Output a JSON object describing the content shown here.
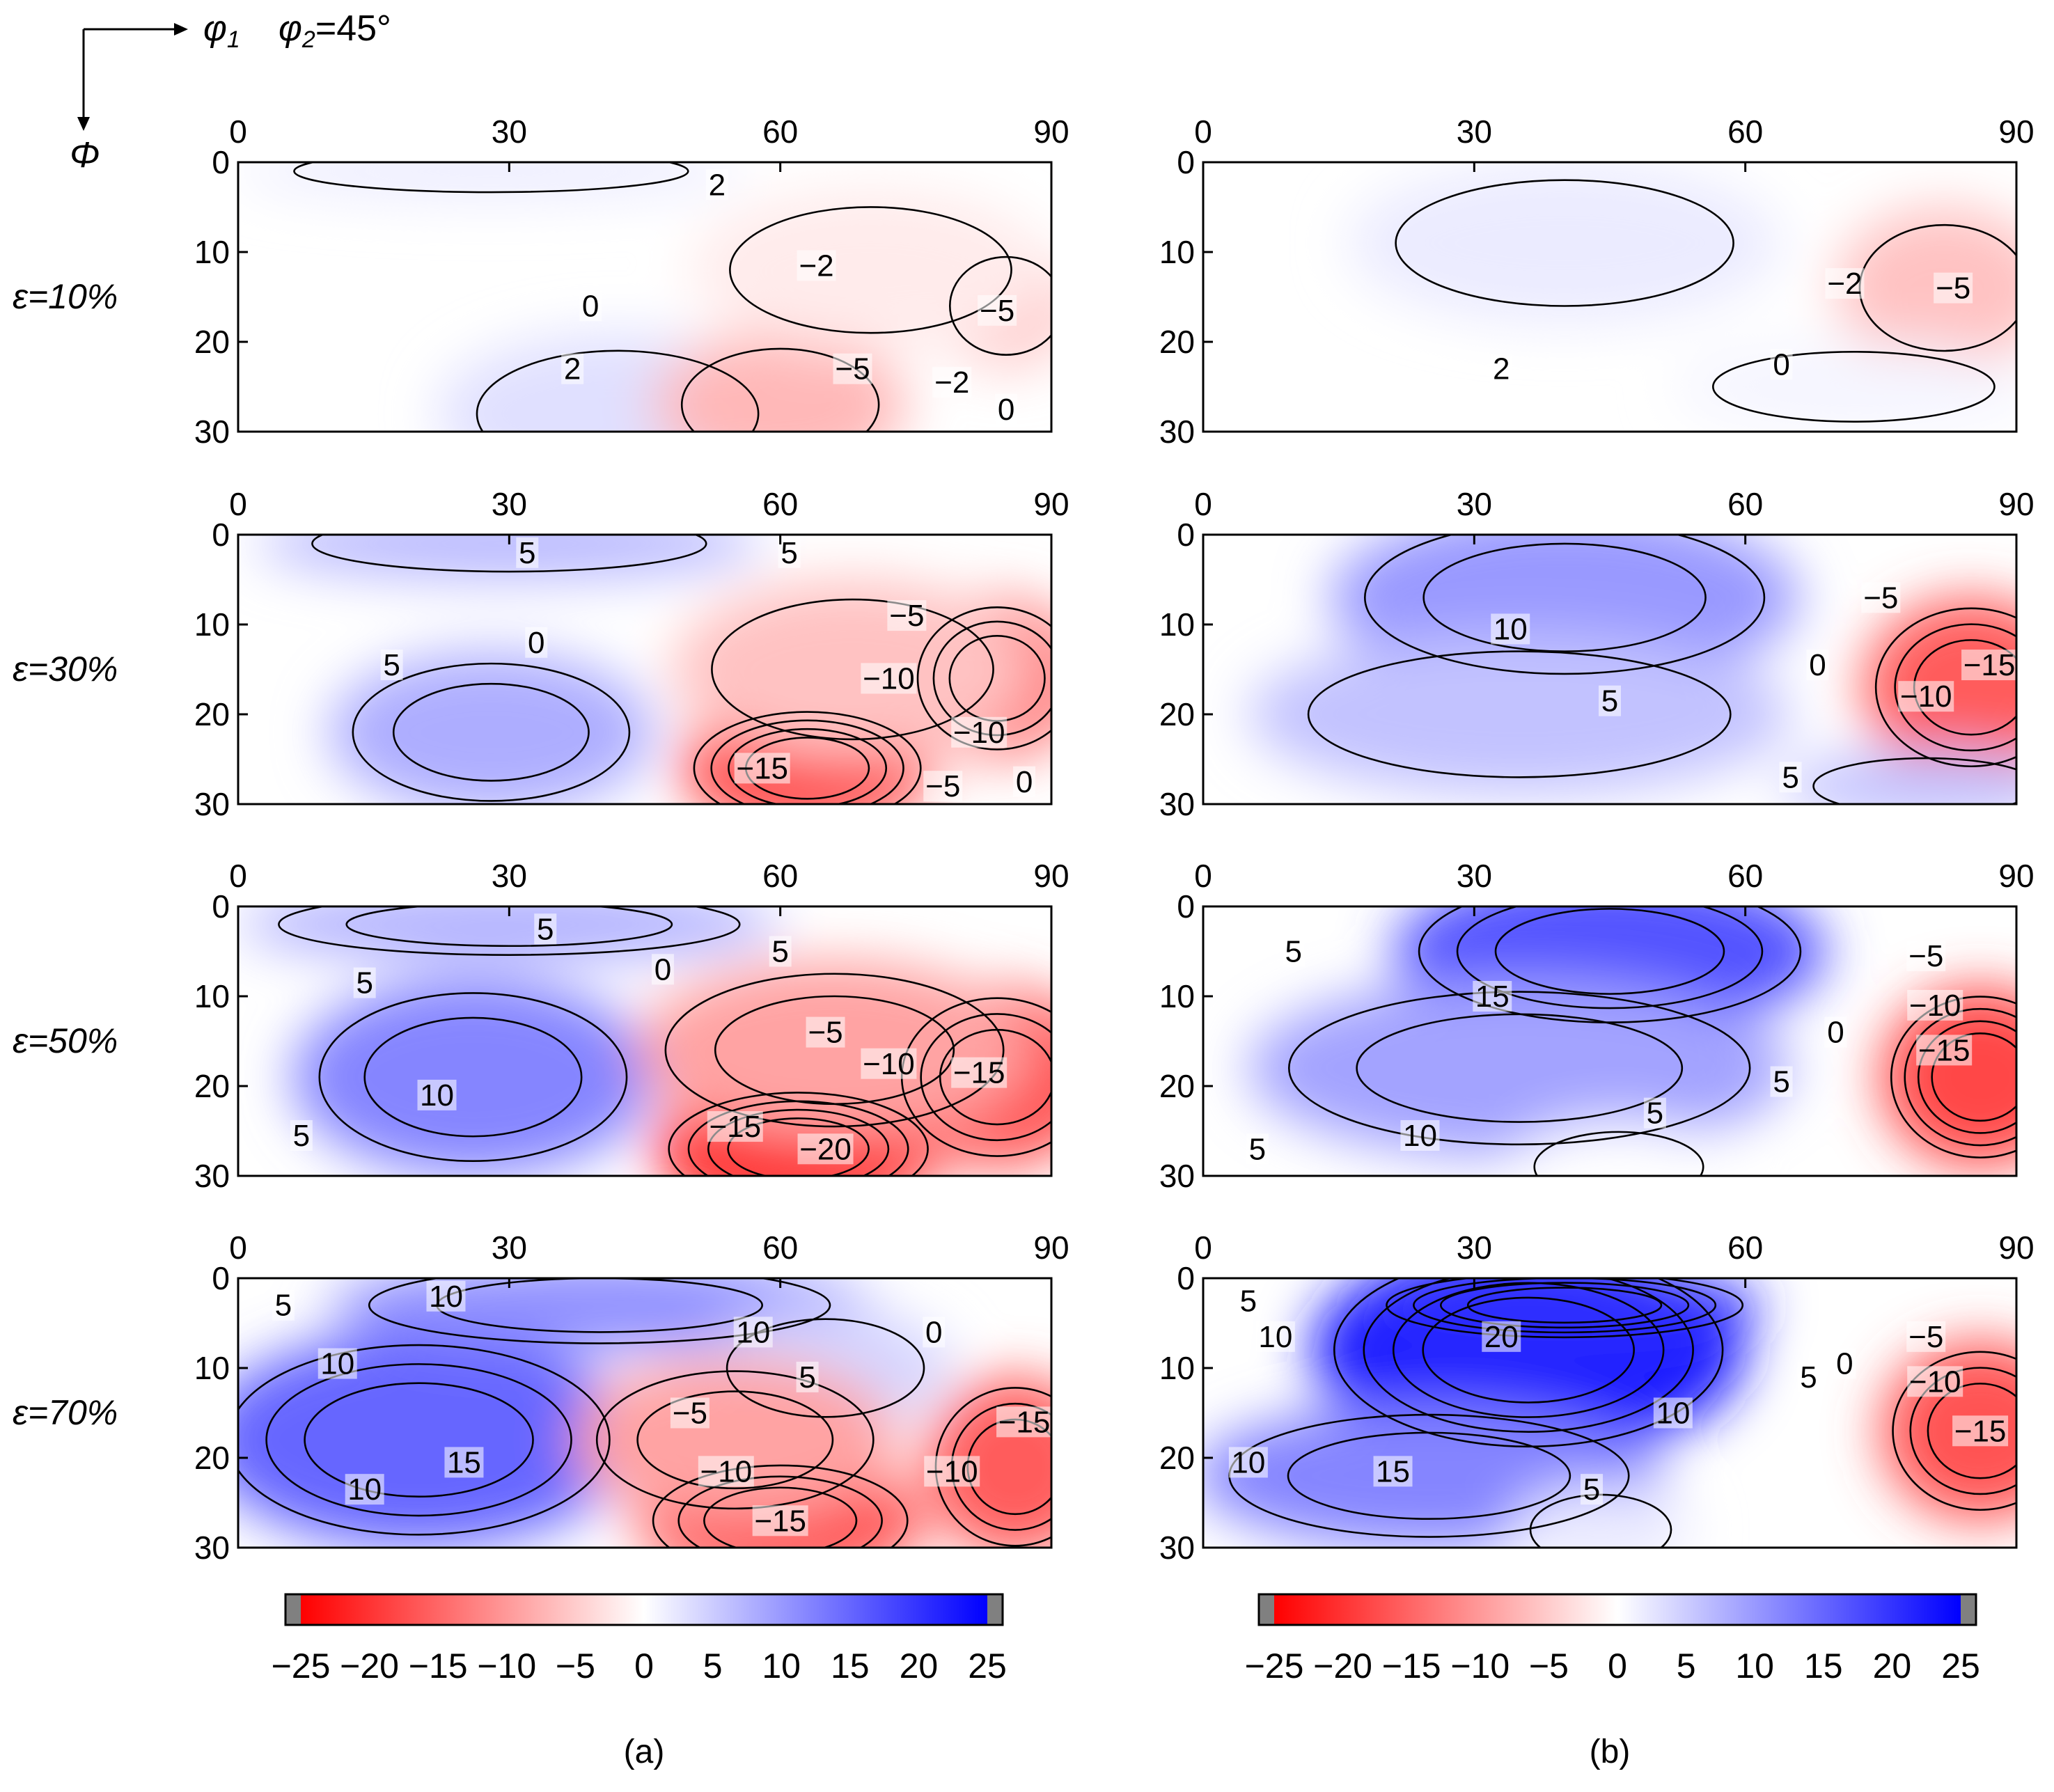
{
  "axes": {
    "phi1_symbol": "φ",
    "phi1_sub": "1",
    "phi2_symbol": "φ",
    "phi2_sub": "2",
    "phi2_value": "=45°",
    "Phi_symbol": "Φ"
  },
  "chart_data": {
    "type": "heatmap",
    "title": "",
    "xlabel": "φ1",
    "ylabel": "Φ",
    "fixed_section": "φ2=45°",
    "x_ticks": [
      "0",
      "30",
      "60",
      "90"
    ],
    "y_ticks": [
      "0",
      "10",
      "20",
      "30"
    ],
    "xlim": [
      0,
      90
    ],
    "ylim": [
      0,
      30
    ],
    "rows": [
      "ε=10%",
      "ε=30%",
      "ε=50%",
      "ε=70%"
    ],
    "columns": [
      "(a)",
      "(b)"
    ],
    "colorbar": {
      "range": [
        -25,
        25
      ],
      "ticks": [
        "−25",
        "−20",
        "−15",
        "−10",
        "−5",
        "0",
        "5",
        "10",
        "15",
        "20",
        "25"
      ],
      "negative_color": "#ff0000",
      "zero_color": "#ffffff",
      "positive_color": "#0000ff",
      "overflow_color": "#808080"
    },
    "panels": [
      {
        "col": "a",
        "row": "ε=10%",
        "blobs": [
          {
            "x": 42,
            "y": 28,
            "rx": 20,
            "ry": 9,
            "v": 3
          },
          {
            "x": 28,
            "y": 1,
            "rx": 28,
            "ry": 3,
            "v": 2
          },
          {
            "x": 60,
            "y": 27,
            "rx": 14,
            "ry": 8,
            "v": -7
          },
          {
            "x": 85,
            "y": 16,
            "rx": 8,
            "ry": 7,
            "v": -5
          },
          {
            "x": 70,
            "y": 12,
            "rx": 20,
            "ry": 9,
            "v": -2
          }
        ],
        "labels": [
          {
            "x": 53,
            "y": 2.5,
            "t": "2"
          },
          {
            "x": 39,
            "y": 16,
            "t": "0"
          },
          {
            "x": 64,
            "y": 11.5,
            "t": "−2"
          },
          {
            "x": 84,
            "y": 16.5,
            "t": "−5"
          },
          {
            "x": 37,
            "y": 23,
            "t": "2"
          },
          {
            "x": 68,
            "y": 23,
            "t": "−5"
          },
          {
            "x": 79,
            "y": 24.5,
            "t": "−2"
          },
          {
            "x": 85,
            "y": 27.5,
            "t": "0"
          }
        ]
      },
      {
        "col": "b",
        "row": "ε=10%",
        "blobs": [
          {
            "x": 40,
            "y": 9,
            "rx": 24,
            "ry": 9,
            "v": 2
          },
          {
            "x": 82,
            "y": 14,
            "rx": 12,
            "ry": 9,
            "v": -6
          },
          {
            "x": 72,
            "y": 25,
            "rx": 20,
            "ry": 5,
            "v": 1
          }
        ],
        "labels": [
          {
            "x": 33,
            "y": 23,
            "t": "2"
          },
          {
            "x": 71,
            "y": 13.5,
            "t": "−2"
          },
          {
            "x": 83,
            "y": 14,
            "t": "−5"
          },
          {
            "x": 64,
            "y": 22.5,
            "t": "0"
          }
        ]
      },
      {
        "col": "a",
        "row": "ε=30%",
        "blobs": [
          {
            "x": 28,
            "y": 22,
            "rx": 18,
            "ry": 9,
            "v": 8
          },
          {
            "x": 30,
            "y": 1,
            "rx": 28,
            "ry": 4,
            "v": 7
          },
          {
            "x": 63,
            "y": 26,
            "rx": 14,
            "ry": 7,
            "v": -18
          },
          {
            "x": 84,
            "y": 16,
            "rx": 10,
            "ry": 9,
            "v": -13
          },
          {
            "x": 68,
            "y": 15,
            "rx": 20,
            "ry": 10,
            "v": -6
          }
        ],
        "labels": [
          {
            "x": 32,
            "y": 2,
            "t": "5"
          },
          {
            "x": 61,
            "y": 2,
            "t": "5"
          },
          {
            "x": 33,
            "y": 12,
            "t": "0"
          },
          {
            "x": 74,
            "y": 9,
            "t": "−5"
          },
          {
            "x": 17,
            "y": 14.5,
            "t": "5"
          },
          {
            "x": 72,
            "y": 16,
            "t": "−10"
          },
          {
            "x": 82,
            "y": 22,
            "t": "−10"
          },
          {
            "x": 58,
            "y": 26,
            "t": "−15"
          },
          {
            "x": 78,
            "y": 28,
            "t": "−5"
          },
          {
            "x": 87,
            "y": 27.5,
            "t": "0"
          }
        ]
      },
      {
        "col": "b",
        "row": "ε=30%",
        "blobs": [
          {
            "x": 40,
            "y": 7,
            "rx": 26,
            "ry": 10,
            "v": 10
          },
          {
            "x": 35,
            "y": 20,
            "rx": 30,
            "ry": 9,
            "v": 6
          },
          {
            "x": 85,
            "y": 17,
            "rx": 12,
            "ry": 10,
            "v": -16
          },
          {
            "x": 80,
            "y": 28,
            "rx": 16,
            "ry": 4,
            "v": 6
          }
        ],
        "labels": [
          {
            "x": 34,
            "y": 10.5,
            "t": "10"
          },
          {
            "x": 45,
            "y": 18.5,
            "t": "5"
          },
          {
            "x": 75,
            "y": 7,
            "t": "−5"
          },
          {
            "x": 68,
            "y": 14.5,
            "t": "0"
          },
          {
            "x": 87,
            "y": 14.5,
            "t": "−15"
          },
          {
            "x": 80,
            "y": 18,
            "t": "−10"
          },
          {
            "x": 65,
            "y": 27,
            "t": "5"
          }
        ]
      },
      {
        "col": "a",
        "row": "ε=50%",
        "blobs": [
          {
            "x": 26,
            "y": 19,
            "rx": 20,
            "ry": 11,
            "v": 12
          },
          {
            "x": 30,
            "y": 2,
            "rx": 30,
            "ry": 4,
            "v": 8
          },
          {
            "x": 62,
            "y": 27,
            "rx": 16,
            "ry": 7,
            "v": -22
          },
          {
            "x": 84,
            "y": 19,
            "rx": 12,
            "ry": 10,
            "v": -17
          },
          {
            "x": 66,
            "y": 16,
            "rx": 22,
            "ry": 10,
            "v": -9
          }
        ],
        "labels": [
          {
            "x": 34,
            "y": 2.5,
            "t": "5"
          },
          {
            "x": 60,
            "y": 5,
            "t": "5"
          },
          {
            "x": 47,
            "y": 7,
            "t": "0"
          },
          {
            "x": 14,
            "y": 8.5,
            "t": "5"
          },
          {
            "x": 65,
            "y": 14,
            "t": "−5"
          },
          {
            "x": 72,
            "y": 17.5,
            "t": "−10"
          },
          {
            "x": 82,
            "y": 18.5,
            "t": "−15"
          },
          {
            "x": 22,
            "y": 21,
            "t": "10"
          },
          {
            "x": 55,
            "y": 24.5,
            "t": "−15"
          },
          {
            "x": 65,
            "y": 27,
            "t": "−20"
          },
          {
            "x": 7,
            "y": 25.5,
            "t": "5"
          }
        ]
      },
      {
        "col": "b",
        "row": "ε=50%",
        "blobs": [
          {
            "x": 45,
            "y": 5,
            "rx": 24,
            "ry": 9,
            "v": 17
          },
          {
            "x": 35,
            "y": 18,
            "rx": 30,
            "ry": 10,
            "v": 9
          },
          {
            "x": 86,
            "y": 19,
            "rx": 11,
            "ry": 10,
            "v": -18
          },
          {
            "x": 46,
            "y": 29,
            "rx": 12,
            "ry": 5,
            "v": 0
          }
        ],
        "labels": [
          {
            "x": 10,
            "y": 5,
            "t": "5"
          },
          {
            "x": 32,
            "y": 10,
            "t": "15"
          },
          {
            "x": 80,
            "y": 5.5,
            "t": "−5"
          },
          {
            "x": 81,
            "y": 11,
            "t": "−10"
          },
          {
            "x": 70,
            "y": 14,
            "t": "0"
          },
          {
            "x": 82,
            "y": 16,
            "t": "−15"
          },
          {
            "x": 64,
            "y": 19.5,
            "t": "5"
          },
          {
            "x": 24,
            "y": 25.5,
            "t": "10"
          },
          {
            "x": 50,
            "y": 23,
            "t": "5"
          },
          {
            "x": 6,
            "y": 27,
            "t": "5"
          }
        ]
      },
      {
        "col": "a",
        "row": "ε=70%",
        "blobs": [
          {
            "x": 20,
            "y": 18,
            "rx": 24,
            "ry": 12,
            "v": 15
          },
          {
            "x": 40,
            "y": 3,
            "rx": 30,
            "ry": 5,
            "v": 11
          },
          {
            "x": 65,
            "y": 10,
            "rx": 14,
            "ry": 7,
            "v": 4
          },
          {
            "x": 60,
            "y": 27,
            "rx": 16,
            "ry": 7,
            "v": -17
          },
          {
            "x": 86,
            "y": 21,
            "rx": 10,
            "ry": 10,
            "v": -16
          },
          {
            "x": 55,
            "y": 18,
            "rx": 18,
            "ry": 9,
            "v": -9
          }
        ],
        "labels": [
          {
            "x": 5,
            "y": 3,
            "t": "5"
          },
          {
            "x": 23,
            "y": 2,
            "t": "10"
          },
          {
            "x": 57,
            "y": 6,
            "t": "10"
          },
          {
            "x": 77,
            "y": 6,
            "t": "0"
          },
          {
            "x": 11,
            "y": 9.5,
            "t": "10"
          },
          {
            "x": 63,
            "y": 11,
            "t": "5"
          },
          {
            "x": 50,
            "y": 15,
            "t": "−5"
          },
          {
            "x": 87,
            "y": 16,
            "t": "−15"
          },
          {
            "x": 25,
            "y": 20.5,
            "t": "15"
          },
          {
            "x": 54,
            "y": 21.5,
            "t": "−10"
          },
          {
            "x": 79,
            "y": 21.5,
            "t": "−10"
          },
          {
            "x": 14,
            "y": 23.5,
            "t": "10"
          },
          {
            "x": 60,
            "y": 27,
            "t": "−15"
          }
        ]
      },
      {
        "col": "b",
        "row": "ε=70%",
        "blobs": [
          {
            "x": 36,
            "y": 8,
            "rx": 24,
            "ry": 12,
            "v": 22
          },
          {
            "x": 40,
            "y": 3,
            "rx": 22,
            "ry": 4,
            "v": 20
          },
          {
            "x": 25,
            "y": 22,
            "rx": 26,
            "ry": 8,
            "v": 12
          },
          {
            "x": 86,
            "y": 17,
            "rx": 11,
            "ry": 10,
            "v": -17
          },
          {
            "x": 44,
            "y": 28,
            "rx": 10,
            "ry": 5,
            "v": 2
          }
        ],
        "labels": [
          {
            "x": 5,
            "y": 2.5,
            "t": "5"
          },
          {
            "x": 8,
            "y": 6.5,
            "t": "10"
          },
          {
            "x": 33,
            "y": 6.5,
            "t": "20"
          },
          {
            "x": 80,
            "y": 6.5,
            "t": "−5"
          },
          {
            "x": 71,
            "y": 9.5,
            "t": "0"
          },
          {
            "x": 67,
            "y": 11,
            "t": "5"
          },
          {
            "x": 81,
            "y": 11.5,
            "t": "−10"
          },
          {
            "x": 52,
            "y": 15,
            "t": "10"
          },
          {
            "x": 86,
            "y": 17,
            "t": "−15"
          },
          {
            "x": 5,
            "y": 20.5,
            "t": "10"
          },
          {
            "x": 21,
            "y": 21.5,
            "t": "15"
          },
          {
            "x": 43,
            "y": 23.5,
            "t": "5"
          }
        ]
      }
    ]
  },
  "panel_labels": {
    "a": "(a)",
    "b": "(b)"
  }
}
